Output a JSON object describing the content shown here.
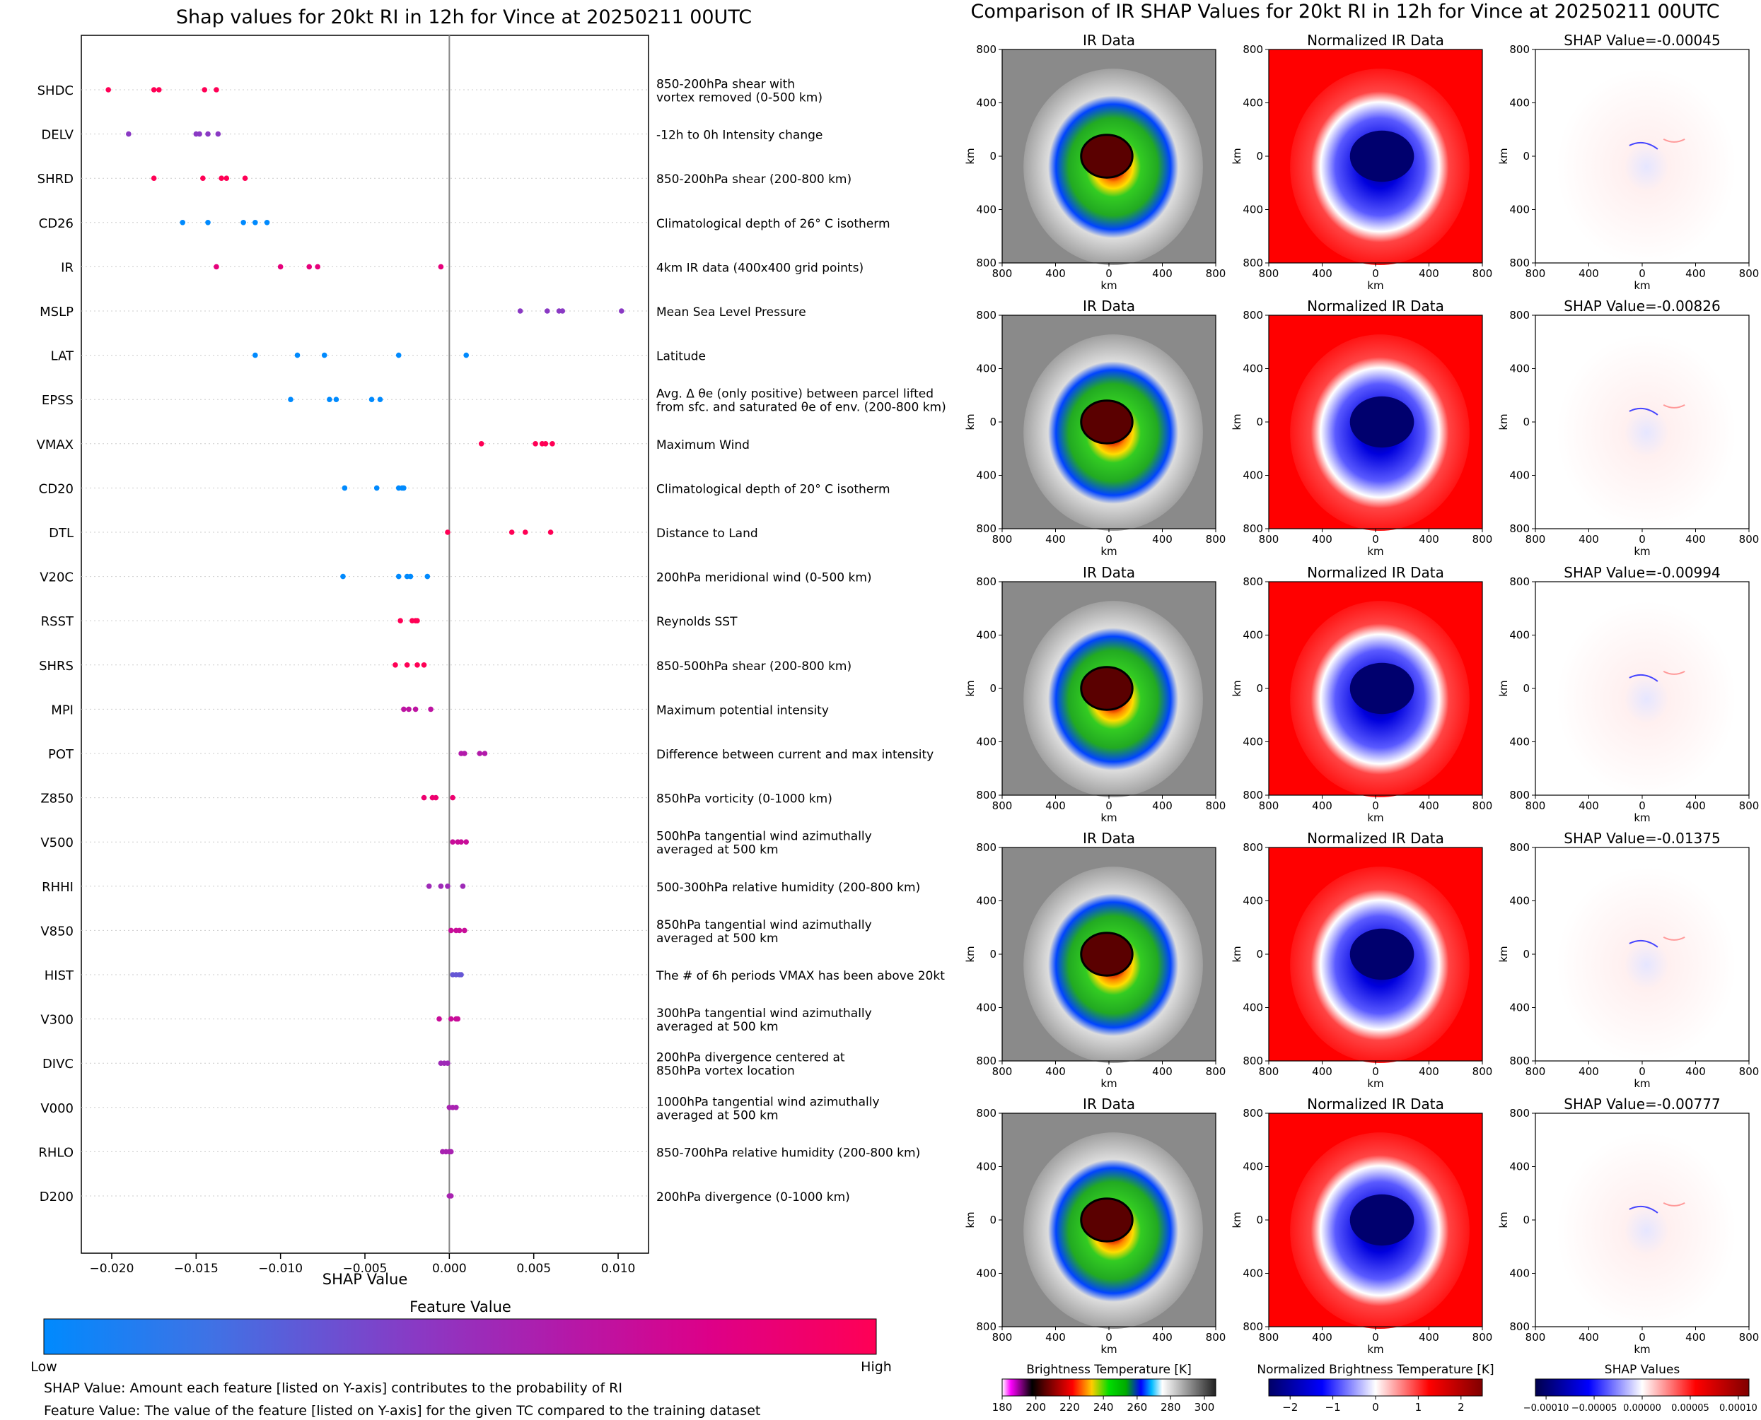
{
  "left_chart_title": "Shap values for 20kt RI in 12h for Vince at 20250211 00UTC",
  "right_title": "Comparison of IR SHAP Values for 20kt RI in 12h for Vince at 20250211 00UTC",
  "feature_value_title": "Feature Value",
  "colorbar_low": "Low",
  "colorbar_high": "High",
  "footnote1": "SHAP Value: Amount each feature [listed on Y-axis] contributes to the probability of RI",
  "footnote2": "Feature Value: The value of the feature [listed on Y-axis] for the given TC compared to the training dataset",
  "feature_colormap": [
    "#008afe",
    "#3f72e5",
    "#8a39c4",
    "#b21aaa",
    "#dd0088",
    "#ff0055"
  ],
  "panel_titles": [
    "IR Data",
    "Normalized IR Data"
  ],
  "shap_panel_titles": [
    "SHAP Value=-0.00045",
    "SHAP Value=-0.00826",
    "SHAP Value=-0.00994",
    "SHAP Value=-0.01375",
    "SHAP Value=-0.00777"
  ],
  "panel_ticks": [
    "800",
    "400",
    "0",
    "400",
    "800"
  ],
  "panel_axis_label": "km",
  "colorbars": [
    {
      "label": "Brightness Temperature [K]",
      "ticks": [
        "180",
        "200",
        "220",
        "240",
        "260",
        "280",
        "300"
      ]
    },
    {
      "label": "Normalized Brightness Temperature [K]",
      "ticks": [
        "−2",
        "−1",
        "0",
        "1",
        "2"
      ]
    },
    {
      "label": "SHAP Values",
      "ticks": [
        "−0.00010",
        "−0.00005",
        "0.00000",
        "0.00005",
        "0.00010"
      ]
    }
  ],
  "chart_data": {
    "type": "scatter",
    "title": "Shap values for 20kt RI in 12h for Vince at 20250211 00UTC",
    "xlabel": "SHAP Value",
    "xlim": [
      -0.0218,
      0.0118
    ],
    "xticks": [
      -0.02,
      -0.015,
      -0.01,
      -0.005,
      0.0,
      0.005,
      0.01
    ],
    "xtick_labels": [
      "−0.020",
      "−0.015",
      "−0.010",
      "−0.005",
      "0.000",
      "0.005",
      "0.010"
    ],
    "features": [
      {
        "name": "SHDC",
        "desc": [
          "850-200hPa shear with",
          "vortex removed (0-500 km)"
        ],
        "level": 1.0,
        "values": [
          -0.0202,
          -0.0175,
          -0.0172,
          -0.0145,
          -0.0138
        ]
      },
      {
        "name": "DELV",
        "desc": [
          "-12h to 0h Intensity change"
        ],
        "level": 0.4,
        "values": [
          -0.019,
          -0.015,
          -0.0148,
          -0.0143,
          -0.0137
        ]
      },
      {
        "name": "SHRD",
        "desc": [
          "850-200hPa shear (200-800 km)"
        ],
        "level": 1.0,
        "values": [
          -0.0175,
          -0.0146,
          -0.0135,
          -0.0132,
          -0.0121
        ]
      },
      {
        "name": "CD26",
        "desc": [
          "Climatological depth of 26° C isotherm"
        ],
        "level": 0.0,
        "values": [
          -0.0158,
          -0.0143,
          -0.0122,
          -0.0115,
          -0.0108
        ]
      },
      {
        "name": "IR",
        "desc": [
          "4km IR data (400x400 grid points)"
        ],
        "level": 0.85,
        "values": [
          -0.0138,
          -0.01,
          -0.0083,
          -0.0078,
          -0.0005
        ]
      },
      {
        "name": "MSLP",
        "desc": [
          "Mean Sea Level Pressure"
        ],
        "level": 0.4,
        "values": [
          0.0042,
          0.0058,
          0.0065,
          0.0067,
          0.0102
        ]
      },
      {
        "name": "LAT",
        "desc": [
          "Latitude"
        ],
        "level": 0.0,
        "values": [
          -0.0115,
          -0.009,
          -0.0074,
          -0.003,
          0.001
        ]
      },
      {
        "name": "EPSS",
        "desc": [
          "Avg. Δ θe (only positive) between parcel lifted",
          "from sfc. and saturated θe of env. (200-800 km)"
        ],
        "level": 0.0,
        "values": [
          -0.0094,
          -0.0071,
          -0.0067,
          -0.0046,
          -0.0041
        ]
      },
      {
        "name": "VMAX",
        "desc": [
          "Maximum Wind"
        ],
        "level": 1.0,
        "values": [
          0.0019,
          0.0051,
          0.0055,
          0.0057,
          0.0061
        ]
      },
      {
        "name": "CD20",
        "desc": [
          "Climatological depth of 20° C isotherm"
        ],
        "level": 0.0,
        "values": [
          -0.0062,
          -0.0043,
          -0.003,
          -0.0028,
          -0.0027
        ]
      },
      {
        "name": "DTL",
        "desc": [
          "Distance to Land"
        ],
        "level": 1.0,
        "values": [
          -0.0001,
          0.0037,
          0.0045,
          0.006
        ]
      },
      {
        "name": "V20C",
        "desc": [
          "200hPa meridional wind (0-500 km)"
        ],
        "level": 0.0,
        "values": [
          -0.0063,
          -0.003,
          -0.0025,
          -0.0023,
          -0.0013
        ]
      },
      {
        "name": "RSST",
        "desc": [
          "Reynolds SST"
        ],
        "level": 1.0,
        "values": [
          -0.0029,
          -0.0022,
          -0.002,
          -0.0019
        ]
      },
      {
        "name": "SHRS",
        "desc": [
          "850-500hPa shear (200-800 km)"
        ],
        "level": 1.0,
        "values": [
          -0.0032,
          -0.0025,
          -0.0019,
          -0.0015
        ]
      },
      {
        "name": "MPI",
        "desc": [
          "Maximum potential intensity"
        ],
        "level": 0.65,
        "values": [
          -0.0027,
          -0.0024,
          -0.002,
          -0.0011
        ]
      },
      {
        "name": "POT",
        "desc": [
          "Difference between current and max intensity"
        ],
        "level": 0.6,
        "values": [
          0.0007,
          0.0009,
          0.0018,
          0.0021
        ]
      },
      {
        "name": "Z850",
        "desc": [
          "850hPa vorticity (0-1000 km)"
        ],
        "level": 0.9,
        "values": [
          -0.0015,
          -0.001,
          -0.0008,
          0.0002
        ]
      },
      {
        "name": "V500",
        "desc": [
          "500hPa tangential wind azimuthally",
          "averaged at 500 km"
        ],
        "level": 0.7,
        "values": [
          0.0002,
          0.0005,
          0.0007,
          0.001
        ]
      },
      {
        "name": "RHHI",
        "desc": [
          "500-300hPa relative humidity (200-800 km)"
        ],
        "level": 0.5,
        "values": [
          -0.0012,
          -0.0005,
          -0.0001,
          0.0008
        ]
      },
      {
        "name": "V850",
        "desc": [
          "850hPa tangential wind azimuthally",
          "averaged at 500 km"
        ],
        "level": 0.7,
        "values": [
          0.0001,
          0.0004,
          0.0006,
          0.0009
        ]
      },
      {
        "name": "HIST",
        "desc": [
          "The # of 6h periods VMAX has been above 20kt"
        ],
        "level": 0.3,
        "values": [
          0.0002,
          0.0004,
          0.0006,
          0.0007
        ]
      },
      {
        "name": "V300",
        "desc": [
          "300hPa tangential wind azimuthally",
          "averaged at 500 km"
        ],
        "level": 0.7,
        "values": [
          -0.0006,
          0.0001,
          0.0004,
          0.0005
        ]
      },
      {
        "name": "DIVC",
        "desc": [
          "200hPa divergence centered at",
          "850hPa vortex location"
        ],
        "level": 0.5,
        "values": [
          -0.0005,
          -0.0003,
          -0.0001
        ]
      },
      {
        "name": "V000",
        "desc": [
          "1000hPa tangential wind azimuthally",
          "averaged at 500 km"
        ],
        "level": 0.55,
        "values": [
          0.0,
          0.0002,
          0.0004
        ]
      },
      {
        "name": "RHLO",
        "desc": [
          "850-700hPa relative humidity (200-800 km)"
        ],
        "level": 0.55,
        "values": [
          -0.0004,
          -0.0002,
          0.0,
          0.0001
        ]
      },
      {
        "name": "D200",
        "desc": [
          "200hPa divergence (0-1000 km)"
        ],
        "level": 0.55,
        "values": [
          0.0,
          0.0001
        ]
      }
    ]
  }
}
